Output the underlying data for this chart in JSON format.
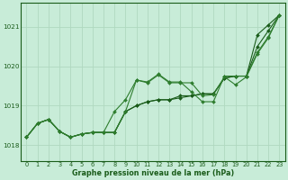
{
  "title": "Graphe pression niveau de la mer (hPa)",
  "bg_color": "#c8ecd8",
  "grid_color": "#b0d8c0",
  "line_color_dark": "#1a5c1a",
  "line_color_med": "#2e7d2e",
  "xlim": [
    -0.5,
    23.5
  ],
  "ylim": [
    1017.6,
    1021.6
  ],
  "yticks": [
    1018,
    1019,
    1020,
    1021
  ],
  "xticks": [
    0,
    1,
    2,
    3,
    4,
    5,
    6,
    7,
    8,
    9,
    10,
    11,
    12,
    13,
    14,
    15,
    16,
    17,
    18,
    19,
    20,
    21,
    22,
    23
  ],
  "series1": [
    1018.2,
    1018.55,
    1018.65,
    1018.35,
    1018.2,
    1018.28,
    1018.32,
    1018.32,
    1018.32,
    1018.85,
    1019.0,
    1019.1,
    1019.15,
    1019.15,
    1019.2,
    1019.25,
    1019.3,
    1019.3,
    1019.7,
    1019.75,
    1019.75,
    1020.8,
    1021.05,
    1021.3
  ],
  "series2": [
    1018.2,
    1018.55,
    1018.65,
    1018.35,
    1018.2,
    1018.28,
    1018.32,
    1018.32,
    1018.85,
    1019.15,
    1019.65,
    1019.6,
    1019.8,
    1019.6,
    1019.6,
    1019.35,
    1019.1,
    1019.1,
    1019.75,
    1019.75,
    1019.75,
    1020.35,
    1020.75,
    1021.3
  ],
  "series3": [
    1018.2,
    1018.55,
    1018.65,
    1018.35,
    1018.2,
    1018.28,
    1018.32,
    1018.32,
    1018.32,
    1018.85,
    1019.65,
    1019.58,
    1019.78,
    1019.58,
    1019.58,
    1019.58,
    1019.25,
    1019.28,
    1019.73,
    1019.53,
    1019.73,
    1020.32,
    1020.72,
    1021.3
  ],
  "series4": [
    1018.2,
    1018.55,
    1018.65,
    1018.35,
    1018.2,
    1018.28,
    1018.32,
    1018.32,
    1018.32,
    1018.85,
    1019.0,
    1019.1,
    1019.15,
    1019.15,
    1019.25,
    1019.25,
    1019.3,
    1019.3,
    1019.7,
    1019.75,
    1019.75,
    1020.5,
    1020.9,
    1021.3
  ]
}
